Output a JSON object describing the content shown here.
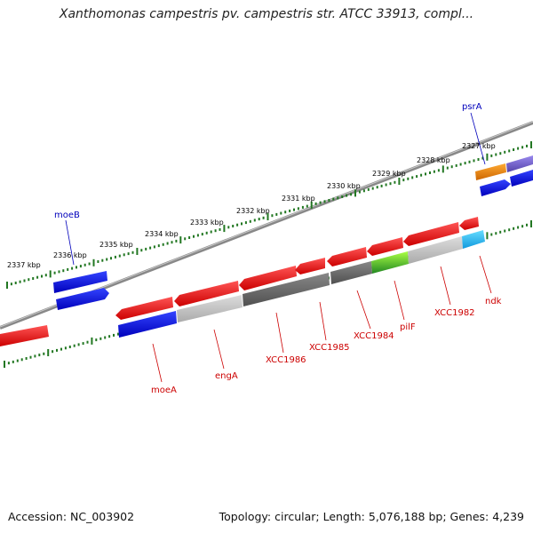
{
  "title": "Xanthomonas campestris pv. campestris str. ATCC 33913, compl...",
  "footer": {
    "accession": "Accession: NC_003902",
    "summary": "Topology: circular; Length: 5,076,188 bp; Genes: 4,239"
  },
  "colors": {
    "red": "#ee1111",
    "blue": "#1111dd",
    "dark_gray": "#666666",
    "light_gray": "#bbbbbb",
    "green": "#44bb22",
    "cyan": "#22bbee",
    "orange": "#ee8811",
    "purple": "#7766cc",
    "tick_green": "#227722",
    "label_red": "#cc0000",
    "label_blue": "#0000bb"
  },
  "scale_kbp": [
    "2337 kbp",
    "2336 kbp",
    "2335 kbp",
    "2334 kbp",
    "2333 kbp",
    "2332 kbp",
    "2331 kbp",
    "2330 kbp",
    "2329 kbp",
    "2328 kbp",
    "2327 kbp"
  ],
  "gene_labels": {
    "moeB": "moeB",
    "psrA": "psrA",
    "moeA": "moeA",
    "engA": "engA",
    "XCC1986": "XCC1986",
    "XCC1985": "XCC1985",
    "XCC1984": "XCC1984",
    "pilF": "pilF",
    "XCC1982": "XCC1982",
    "ndk": "ndk"
  }
}
